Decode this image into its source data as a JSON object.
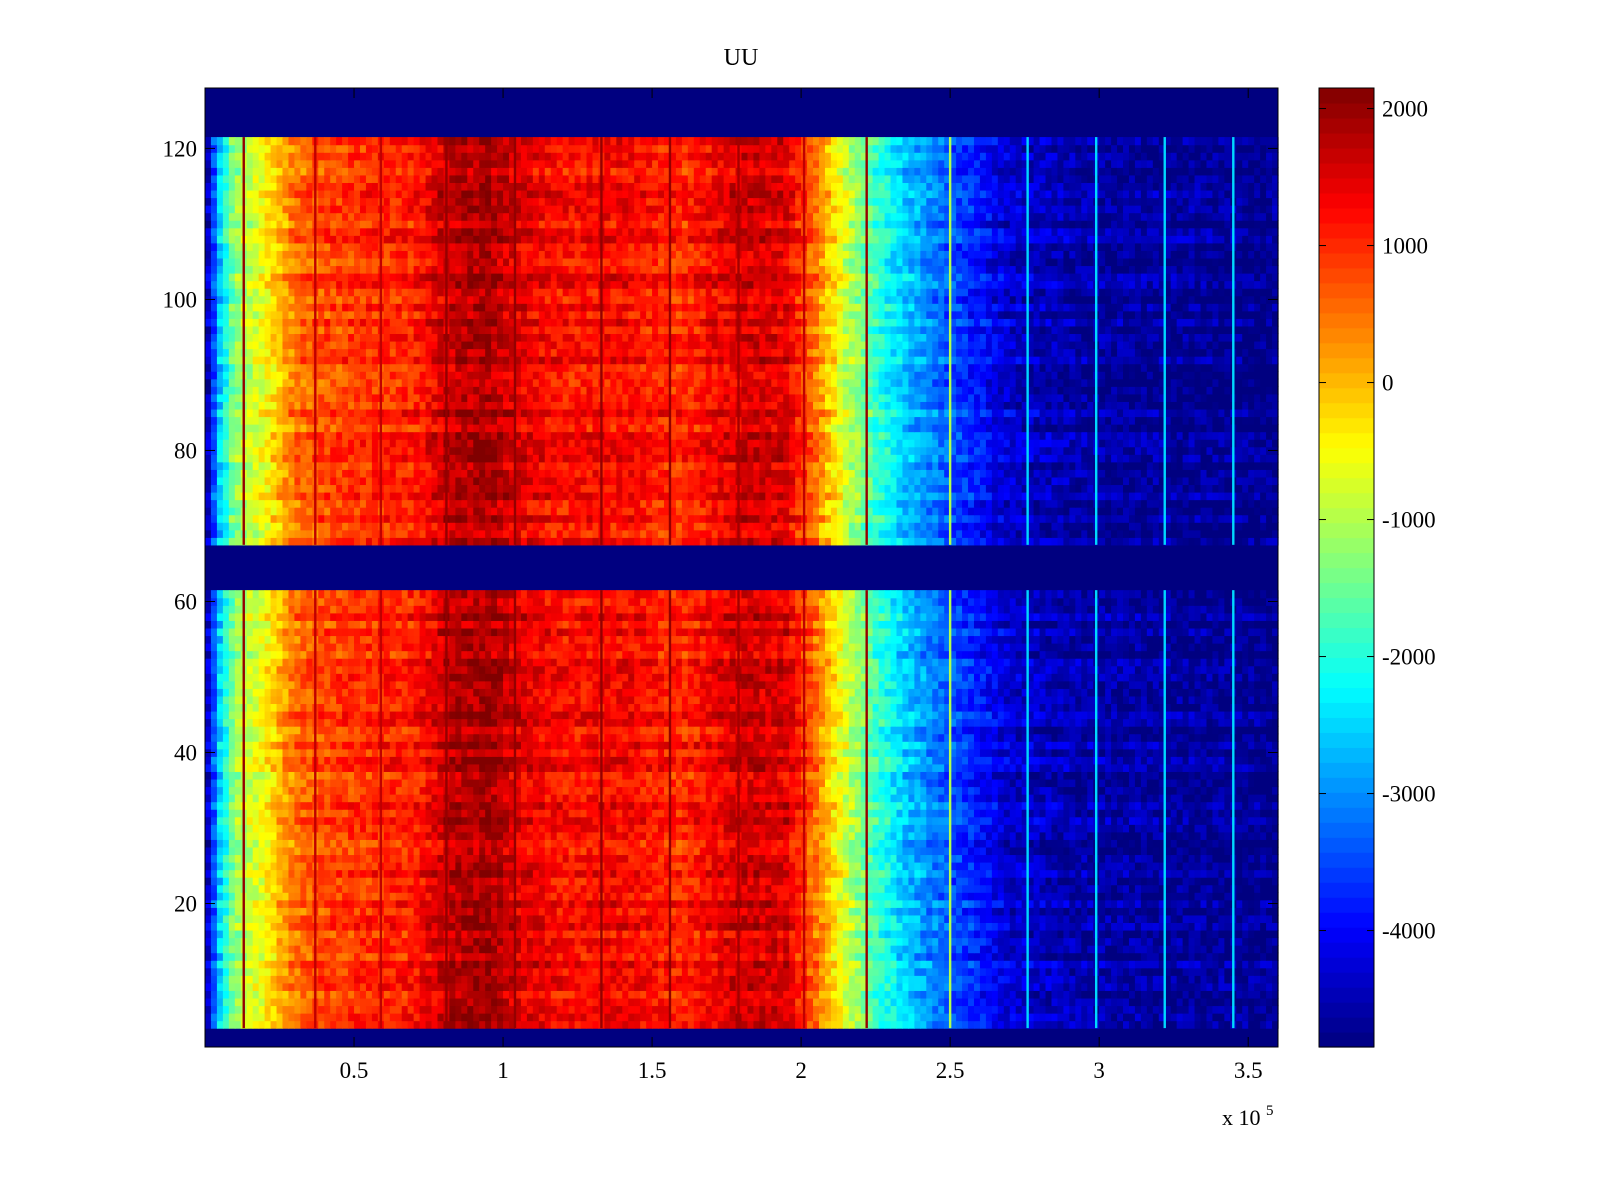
{
  "chart_data": {
    "type": "heatmap",
    "title": "UU",
    "xlabel": "",
    "ylabel": "",
    "colormap": "jet",
    "grid": false,
    "xlim": [
      0,
      360000
    ],
    "ylim": [
      1,
      128
    ],
    "x_multiplier_label": "x 10",
    "x_multiplier_exponent": "5",
    "x_ticks": [
      0.5,
      1,
      1.5,
      2,
      2.5,
      3,
      3.5
    ],
    "x_tick_labels": [
      "0.5",
      "1",
      "1.5",
      "2",
      "2.5",
      "3",
      "3.5"
    ],
    "y_ticks": [
      20,
      40,
      60,
      80,
      100,
      120
    ],
    "y_tick_labels": [
      "20",
      "40",
      "60",
      "80",
      "100",
      "120"
    ],
    "colorbar": {
      "position": "right",
      "clim": [
        -4850,
        2150
      ],
      "ticks": [
        2000,
        1000,
        0,
        -1000,
        -2000,
        -3000,
        -4000
      ],
      "tick_labels": [
        "2000",
        "1000",
        "0",
        "-1000",
        "-2000",
        "-3000",
        "-4000"
      ]
    },
    "row_bands": [
      {
        "rows": [
          4,
          61
        ],
        "value_range": "data"
      },
      {
        "rows": [
          62,
          67
        ],
        "value": -4850
      },
      {
        "rows": [
          68,
          121
        ],
        "value_range": "data"
      },
      {
        "rows": [
          122,
          128
        ],
        "value": -4850
      },
      {
        "rows": [
          1,
          3
        ],
        "value": -4850
      }
    ],
    "column_profile": [
      {
        "x": 0,
        "value": -4800
      },
      {
        "x": 5000,
        "value": -2500
      },
      {
        "x": 10000,
        "value": -1200
      },
      {
        "x": 20000,
        "value": -500
      },
      {
        "x": 30000,
        "value": 500
      },
      {
        "x": 40000,
        "value": 800
      },
      {
        "x": 55000,
        "value": 1000
      },
      {
        "x": 70000,
        "value": 1100
      },
      {
        "x": 82000,
        "value": 1700
      },
      {
        "x": 95000,
        "value": 1900
      },
      {
        "x": 105000,
        "value": 1500
      },
      {
        "x": 120000,
        "value": 1200
      },
      {
        "x": 140000,
        "value": 1300
      },
      {
        "x": 160000,
        "value": 1000
      },
      {
        "x": 180000,
        "value": 1600
      },
      {
        "x": 195000,
        "value": 1500
      },
      {
        "x": 205000,
        "value": 500
      },
      {
        "x": 215000,
        "value": -800
      },
      {
        "x": 225000,
        "value": -1800
      },
      {
        "x": 235000,
        "value": -2600
      },
      {
        "x": 250000,
        "value": -3400
      },
      {
        "x": 270000,
        "value": -4300
      },
      {
        "x": 300000,
        "value": -4600
      },
      {
        "x": 360000,
        "value": -4750
      }
    ],
    "vertical_lines": [
      {
        "x": 13000,
        "value": 2000
      },
      {
        "x": 37000,
        "value": 1700
      },
      {
        "x": 59000,
        "value": 1700
      },
      {
        "x": 81000,
        "value": 2000
      },
      {
        "x": 104000,
        "value": 2000
      },
      {
        "x": 133000,
        "value": 2000
      },
      {
        "x": 156000,
        "value": 2000
      },
      {
        "x": 179000,
        "value": 1900
      },
      {
        "x": 201000,
        "value": 1700
      },
      {
        "x": 222000,
        "value": 2000
      },
      {
        "x": 250000,
        "value": -1000
      },
      {
        "x": 276000,
        "value": -2500
      },
      {
        "x": 299000,
        "value": -2500
      },
      {
        "x": 322000,
        "value": -2500
      },
      {
        "x": 345000,
        "value": -2500
      }
    ]
  }
}
